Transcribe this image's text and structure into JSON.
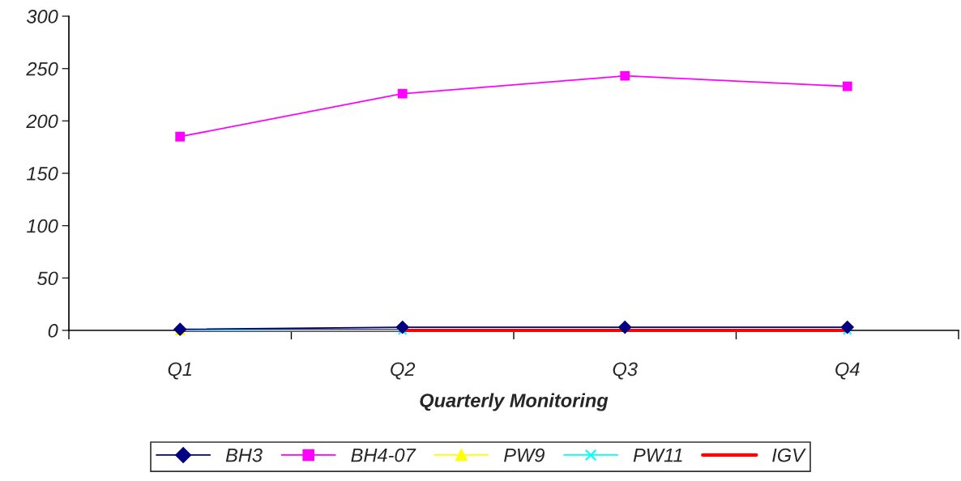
{
  "chart_data": {
    "type": "line",
    "xlabel": "Quarterly Monitoring",
    "categories": [
      "Q1",
      "Q2",
      "Q3",
      "Q4"
    ],
    "series": [
      {
        "name": "BH3",
        "color": "#000080",
        "marker": "diamond",
        "values": [
          1,
          3,
          3,
          3
        ]
      },
      {
        "name": "BH4-07",
        "color": "#ff00ff",
        "marker": "square",
        "values": [
          185,
          226,
          243,
          233
        ]
      },
      {
        "name": "PW9",
        "color": "#ffff00",
        "marker": "triangle",
        "values": [
          0,
          null,
          null,
          null
        ]
      },
      {
        "name": "PW11",
        "color": "#00ffff",
        "marker": "cross",
        "values": [
          0,
          0,
          null,
          0
        ]
      },
      {
        "name": "IGV",
        "color": "#ff0000",
        "marker": "none",
        "values": [
          0,
          0,
          0,
          0
        ]
      }
    ],
    "ylim": [
      0,
      300
    ],
    "yticks": [
      0,
      50,
      100,
      150,
      200,
      250,
      300
    ],
    "grid": false,
    "legend": "bottom"
  }
}
